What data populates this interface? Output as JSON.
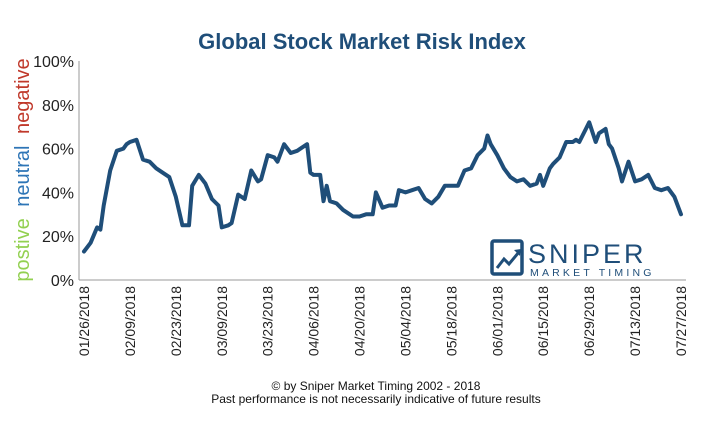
{
  "chart_data": {
    "type": "line",
    "title": "Global Stock Market Risk Index",
    "ylim": [
      0,
      100
    ],
    "y_ticks": [
      "0%",
      "20%",
      "40%",
      "60%",
      "80%",
      "100%"
    ],
    "x_ticks": [
      "01/26/2018",
      "02/09/2018",
      "02/23/2018",
      "03/09/2018",
      "03/23/2018",
      "04/06/2018",
      "04/20/2018",
      "05/04/2018",
      "05/18/2018",
      "06/01/2018",
      "06/15/2018",
      "06/29/2018",
      "07/13/2018",
      "07/27/2018"
    ],
    "x_start": "01/26/2018",
    "x_end": "07/27/2018",
    "side_labels": {
      "negative": "negative",
      "neutral": "neutral",
      "positive": "postive"
    },
    "colors": {
      "title": "#1f4e79",
      "line": "#1f4e79",
      "negative": "#c0392b",
      "neutral": "#2e75b6",
      "positive": "#92d050"
    },
    "series": [
      {
        "x": [
          "01/26/2018",
          "01/28/2018",
          "01/30/2018",
          "01/31/2018",
          "02/01/2018",
          "02/03/2018",
          "02/05/2018",
          "02/07/2018",
          "02/08/2018",
          "02/09/2018",
          "02/11/2018",
          "02/13/2018",
          "02/15/2018",
          "02/17/2018",
          "02/19/2018",
          "02/21/2018",
          "02/23/2018",
          "02/25/2018",
          "02/27/2018",
          "02/28/2018",
          "03/02/2018",
          "03/04/2018",
          "03/06/2018",
          "03/08/2018",
          "03/09/2018",
          "03/11/2018",
          "03/12/2018",
          "03/14/2018",
          "03/16/2018",
          "03/18/2018",
          "03/20/2018",
          "03/21/2018",
          "03/23/2018",
          "03/25/2018",
          "03/26/2018",
          "03/28/2018",
          "03/30/2018",
          "04/01/2018",
          "04/02/2018",
          "04/04/2018",
          "04/05/2018",
          "04/06/2018",
          "04/08/2018",
          "04/09/2018",
          "04/10/2018",
          "04/11/2018",
          "04/13/2018",
          "04/15/2018",
          "04/17/2018",
          "04/18/2018",
          "04/20/2018",
          "04/22/2018",
          "04/24/2018",
          "04/25/2018",
          "04/27/2018",
          "04/29/2018",
          "05/01/2018",
          "05/02/2018",
          "05/04/2018",
          "05/06/2018",
          "05/08/2018",
          "05/10/2018",
          "05/12/2018",
          "05/14/2018",
          "05/16/2018",
          "05/18/2018",
          "05/20/2018",
          "05/22/2018",
          "05/24/2018",
          "05/26/2018",
          "05/28/2018",
          "05/29/2018",
          "05/30/2018",
          "06/01/2018",
          "06/03/2018",
          "06/05/2018",
          "06/07/2018",
          "06/09/2018",
          "06/11/2018",
          "06/13/2018",
          "06/14/2018",
          "06/15/2018",
          "06/17/2018",
          "06/18/2018",
          "06/20/2018",
          "06/22/2018",
          "06/24/2018",
          "06/25/2018",
          "06/26/2018",
          "06/28/2018",
          "06/29/2018",
          "07/01/2018",
          "07/02/2018",
          "07/04/2018",
          "07/05/2018",
          "07/06/2018",
          "07/08/2018",
          "07/09/2018",
          "07/11/2018",
          "07/13/2018",
          "07/15/2018",
          "07/17/2018",
          "07/19/2018",
          "07/21/2018",
          "07/23/2018",
          "07/25/2018",
          "07/27/2018"
        ],
        "y": [
          13,
          17,
          24,
          23,
          34,
          50,
          59,
          60,
          62,
          63,
          64,
          55,
          54,
          51,
          49,
          47,
          38,
          25,
          25,
          43,
          48,
          44,
          37,
          34,
          24,
          25,
          26,
          39,
          37,
          50,
          45,
          46,
          57,
          56,
          54,
          62,
          58,
          59,
          60,
          62,
          49,
          48,
          48,
          36,
          43,
          36,
          35,
          32,
          30,
          29,
          29,
          30,
          30,
          40,
          33,
          34,
          34,
          41,
          40,
          41,
          42,
          37,
          35,
          38,
          43,
          43,
          43,
          50,
          51,
          57,
          60,
          66,
          62,
          57,
          51,
          47,
          45,
          46,
          43,
          44,
          48,
          43,
          51,
          53,
          56,
          63,
          63,
          64,
          63,
          69,
          72,
          63,
          67,
          69,
          62,
          60,
          51,
          45,
          54,
          45,
          46,
          48,
          42,
          41,
          42,
          38,
          30
        ]
      }
    ]
  },
  "footer": {
    "line1": "© by Sniper Market Timing 2002 - 2018",
    "line2": "Past performance is not necessarily indicative of future results"
  },
  "logo": {
    "name": "SNIPER",
    "tagline": "MARKET TIMING",
    "icon": "rising-chart-icon"
  }
}
